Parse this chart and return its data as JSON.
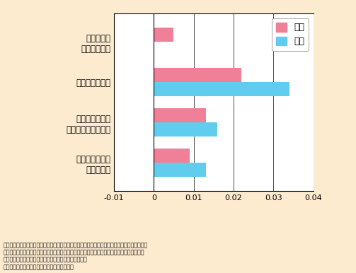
{
  "categories": [
    "勉強するように\n言っている",
    "勉強する時間を\n決めて守らせている",
    "勉強を見ている",
    "勉強したか\n確認している"
  ],
  "girl_values": [
    0.009,
    0.013,
    0.022,
    0.005
  ],
  "boy_values": [
    0.013,
    0.016,
    0.034,
    0.0
  ],
  "girl_color": "#F08098",
  "boy_color": "#60CCEE",
  "xlim": [
    -0.01,
    0.04
  ],
  "xticks": [
    -0.01,
    0,
    0.01,
    0.02,
    0.03,
    0.04
  ],
  "legend_girl": "女子",
  "legend_boy": "男子",
  "note_line1": "（注）図表は子どもや親に関する観察不可能な要因（子ども自身の能力や親の教育熱心さなど）",
  "note_line2": "を制御した固定効果モデルによる推計結果をあらわしたもの。数値が正の値で高いほど、子ど",
  "note_line3": "もの学習時間を増加させる効果が高いことを意味する。",
  "note_line4": "男子・女子は子どもの性別をあらわしている。",
  "background_color": "#FDEBD0",
  "plot_background": "#FFFFFF",
  "bar_height": 0.35
}
